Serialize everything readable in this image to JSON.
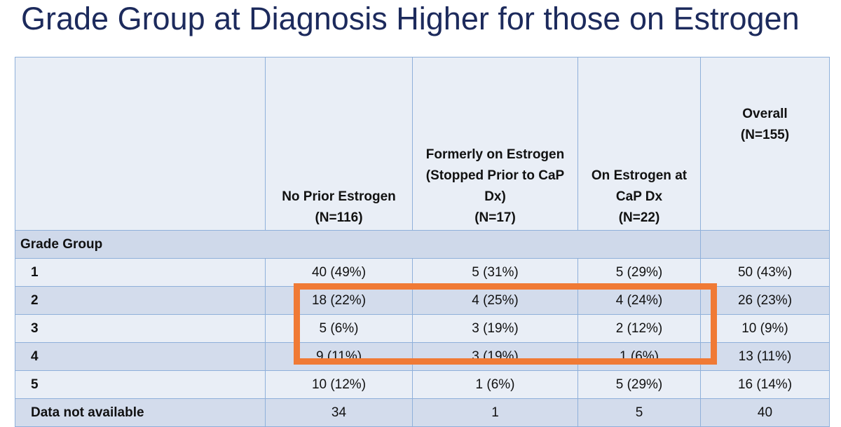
{
  "title": "Grade Group at Diagnosis Higher for those on Estrogen",
  "table": {
    "headers": [
      {
        "lines": []
      },
      {
        "lines": [
          "No Prior Estrogen",
          "(N=116)"
        ]
      },
      {
        "lines": [
          "Formerly on Estrogen",
          "(Stopped Prior to CaP",
          "Dx)",
          "(N=17)"
        ]
      },
      {
        "lines": [
          "On Estrogen at",
          "CaP Dx",
          "(N=22)"
        ]
      },
      {
        "lines": [
          "Overall",
          "(N=155)"
        ]
      }
    ],
    "section_label": "Grade Group",
    "rows": [
      {
        "label": "1",
        "cells": [
          "40 (49%)",
          "5 (31%)",
          "5 (29%)",
          "50 (43%)"
        ]
      },
      {
        "label": "2",
        "cells": [
          "18 (22%)",
          "4 (25%)",
          "4 (24%)",
          "26 (23%)"
        ]
      },
      {
        "label": "3",
        "cells": [
          "5 (6%)",
          "3 (19%)",
          "2 (12%)",
          "10 (9%)"
        ]
      },
      {
        "label": "4",
        "cells": [
          "9 (11%)",
          "3 (19%)",
          "1 (6%)",
          "13 (11%)"
        ]
      },
      {
        "label": "5",
        "cells": [
          "10 (12%)",
          "1 (6%)",
          "5 (29%)",
          "16 (14%)"
        ]
      },
      {
        "label": "Data not available",
        "cells": [
          "34",
          "1",
          "5",
          "40"
        ]
      }
    ]
  },
  "colors": {
    "title": "#1c2a5c",
    "highlight": "#f07a35"
  }
}
